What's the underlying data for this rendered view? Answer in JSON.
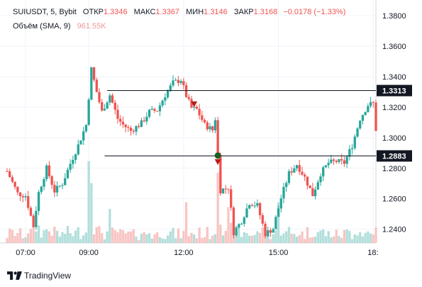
{
  "header": {
    "symbol": "SUIUSDT, 5, Bybit",
    "open_label": "ОТКР",
    "open_value": "1.3346",
    "high_label": "МАКС",
    "high_value": "1.3367",
    "low_label": "МИН",
    "low_value": "1.3146",
    "close_label": "ЗАКР",
    "close_value": "1.3168",
    "change": "−0.0178 (−1.33%)",
    "volume_label": "Объём (SMA, 9)",
    "volume_value": "961.55K"
  },
  "brand": {
    "name": "TradingView",
    "logo": "tradingview-logo"
  },
  "colors": {
    "up": "#26a69a",
    "down": "#ef5350",
    "up_volume": "#b2dfdb",
    "down_volume": "#f7c5c3",
    "line": "#131722",
    "price_tag": "#131722"
  },
  "chart_data": {
    "type": "candlestick",
    "title": "SUIUSDT, 5, Bybit",
    "xlabel": "",
    "ylabel": "",
    "x_ticks": [
      "07:00",
      "09:00",
      "12:00",
      "15:00",
      "18:"
    ],
    "y_ticks": [
      "1.2400",
      "1.2600",
      "1.2800",
      "1.3000",
      "1.3200",
      "1.3400",
      "1.3600",
      "1.3800"
    ],
    "ylim": [
      1.231,
      1.3875
    ],
    "time_range": [
      "06:25",
      "18:05"
    ],
    "grid": true,
    "horizontal_lines": [
      {
        "price": 1.3313,
        "label": "1.3313",
        "from": "09:35"
      },
      {
        "price": 1.2883,
        "label": "1.2883",
        "from": "09:30"
      }
    ],
    "markers": [
      {
        "time": "12:20",
        "price": 1.3215,
        "type": "arrow-down",
        "color": "#b71c1c"
      },
      {
        "time": "13:05",
        "price": 1.2883,
        "type": "circle",
        "color": "#1b5e20"
      },
      {
        "time": "13:05",
        "price": 1.2836,
        "type": "arrow-down",
        "color": "#b71c1c"
      }
    ],
    "price_path": {
      "times": [
        "06:25",
        "06:45",
        "07:00",
        "07:15",
        "07:25",
        "07:40",
        "07:55",
        "08:10",
        "08:25",
        "08:40",
        "08:55",
        "09:05",
        "09:15",
        "09:25",
        "09:40",
        "09:55",
        "10:05",
        "10:20",
        "10:40",
        "10:55",
        "11:10",
        "11:25",
        "11:40",
        "11:55",
        "12:05",
        "12:15",
        "12:25",
        "12:40",
        "12:55",
        "13:00",
        "13:05",
        "13:10",
        "13:25",
        "13:35",
        "13:50",
        "14:05",
        "14:20",
        "14:35",
        "14:50",
        "15:05",
        "15:20",
        "15:35",
        "15:50",
        "16:05",
        "16:20",
        "16:35",
        "16:50",
        "17:05",
        "17:20",
        "17:35",
        "17:50",
        "18:00",
        "18:05"
      ],
      "prices": [
        1.278,
        1.2635,
        1.262,
        1.242,
        1.264,
        1.28,
        1.265,
        1.27,
        1.283,
        1.295,
        1.3085,
        1.345,
        1.33,
        1.317,
        1.328,
        1.3125,
        1.3085,
        1.3045,
        1.3095,
        1.317,
        1.318,
        1.328,
        1.336,
        1.338,
        1.3275,
        1.3195,
        1.3185,
        1.3085,
        1.305,
        1.3125,
        1.2883,
        1.2655,
        1.2675,
        1.238,
        1.2455,
        1.2575,
        1.2555,
        1.237,
        1.2405,
        1.2605,
        1.2765,
        1.2825,
        1.274,
        1.2625,
        1.2765,
        1.2835,
        1.2845,
        1.2835,
        1.295,
        1.3125,
        1.3215,
        1.3225,
        1.3055
      ]
    },
    "volume_note": "volume bars at chart bottom; tall spikes near 09:00, 12:00 and 13:05"
  }
}
